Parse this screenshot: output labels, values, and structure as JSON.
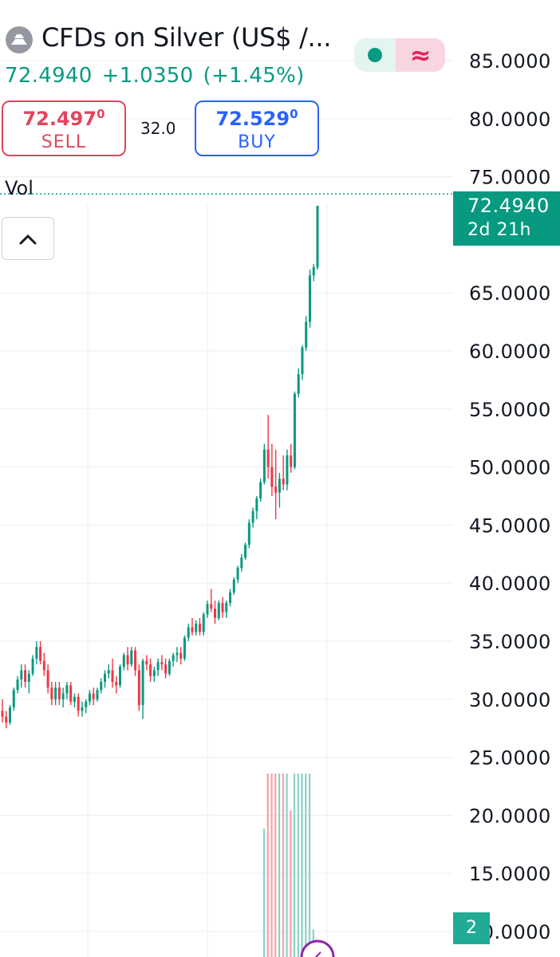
{
  "header": {
    "title": "CFDs on Silver (US$ /...",
    "icon": "silver-metal-icon",
    "status_icon": "market-open-dot-icon",
    "wave_icon": "approx-wave-icon",
    "wave_glyph": "≈"
  },
  "quote": {
    "last": "72.4940",
    "change": "+1.0350",
    "change_pct": "(+1.45%)"
  },
  "trade": {
    "sell_price": "72.497",
    "sell_price_sup": "0",
    "sell_label": "SELL",
    "spread": "32.0",
    "buy_price": "72.529",
    "buy_price_sup": "0",
    "buy_label": "BUY"
  },
  "indicator": {
    "vol_label": "Vol"
  },
  "price_label": {
    "price": "72.4940",
    "countdown": "2d 21h"
  },
  "badge": {
    "count": "2"
  },
  "colors": {
    "up": "#089981",
    "down": "#f23645",
    "vol_up": "#8fd1c6",
    "vol_down": "#f5a3ab",
    "grid": "#eef0f3"
  },
  "chart_data": {
    "type": "candlestick",
    "title": "",
    "y_axis": {
      "position": "right",
      "ticks": [
        "85.0000",
        "80.0000",
        "75.0000",
        "65.0000",
        "60.0000",
        "55.0000",
        "50.0000",
        "45.0000",
        "40.0000",
        "35.0000",
        "30.0000",
        "25.0000",
        "20.0000",
        "15.0000",
        "10.0000"
      ],
      "tick_values": [
        85,
        80,
        75,
        65,
        60,
        55,
        50,
        45,
        40,
        35,
        30,
        25,
        20,
        15,
        10
      ],
      "range": [
        10,
        85
      ]
    },
    "grid": true,
    "current_price": 72.494,
    "ohlc": [
      [
        29.0,
        30.0,
        28.0,
        28.5
      ],
      [
        28.5,
        29.0,
        27.5,
        28.0
      ],
      [
        28.0,
        29.5,
        27.8,
        29.3
      ],
      [
        29.3,
        31.0,
        29.0,
        30.8
      ],
      [
        30.8,
        32.0,
        30.5,
        31.7
      ],
      [
        31.7,
        33.0,
        31.0,
        32.5
      ],
      [
        32.5,
        33.0,
        31.0,
        31.5
      ],
      [
        31.5,
        32.5,
        30.5,
        32.2
      ],
      [
        32.2,
        33.8,
        32.0,
        33.5
      ],
      [
        33.5,
        35.0,
        33.0,
        34.5
      ],
      [
        34.5,
        35.0,
        33.0,
        33.3
      ],
      [
        33.3,
        34.0,
        32.0,
        32.5
      ],
      [
        32.5,
        33.0,
        30.5,
        31.0
      ],
      [
        31.0,
        31.5,
        29.5,
        30.0
      ],
      [
        30.0,
        31.5,
        29.5,
        31.0
      ],
      [
        31.0,
        31.5,
        29.5,
        30.0
      ],
      [
        30.0,
        31.0,
        29.3,
        30.5
      ],
      [
        30.5,
        31.5,
        30.0,
        31.2
      ],
      [
        31.2,
        31.5,
        29.5,
        29.8
      ],
      [
        29.8,
        30.5,
        29.3,
        30.2
      ],
      [
        30.2,
        30.5,
        28.5,
        29.0
      ],
      [
        29.0,
        29.8,
        28.5,
        29.3
      ],
      [
        29.3,
        30.0,
        28.8,
        29.8
      ],
      [
        29.8,
        30.8,
        29.5,
        30.5
      ],
      [
        30.5,
        31.0,
        29.5,
        30.0
      ],
      [
        30.0,
        31.0,
        29.8,
        30.8
      ],
      [
        30.8,
        31.8,
        30.5,
        31.5
      ],
      [
        31.5,
        32.5,
        31.0,
        32.2
      ],
      [
        32.2,
        33.0,
        31.8,
        32.5
      ],
      [
        32.5,
        33.5,
        31.0,
        31.5
      ],
      [
        31.5,
        32.0,
        30.5,
        31.2
      ],
      [
        31.2,
        33.0,
        31.0,
        32.8
      ],
      [
        32.8,
        34.0,
        32.5,
        33.8
      ],
      [
        33.8,
        34.5,
        32.5,
        33.0
      ],
      [
        33.0,
        34.5,
        32.8,
        34.2
      ],
      [
        34.2,
        34.5,
        32.0,
        32.5
      ],
      [
        32.5,
        33.0,
        29.0,
        29.5
      ],
      [
        29.5,
        33.5,
        28.3,
        33.3
      ],
      [
        33.3,
        33.8,
        32.5,
        33.0
      ],
      [
        33.0,
        33.5,
        31.5,
        32.0
      ],
      [
        32.0,
        32.8,
        31.5,
        32.5
      ],
      [
        32.5,
        33.5,
        32.0,
        33.2
      ],
      [
        33.2,
        33.8,
        32.5,
        33.0
      ],
      [
        33.0,
        33.5,
        31.8,
        32.2
      ],
      [
        32.2,
        33.5,
        32.0,
        33.3
      ],
      [
        33.3,
        34.0,
        32.8,
        33.8
      ],
      [
        33.8,
        34.5,
        33.2,
        34.0
      ],
      [
        34.0,
        34.5,
        33.0,
        33.5
      ],
      [
        33.5,
        35.5,
        33.3,
        35.3
      ],
      [
        35.3,
        36.5,
        35.0,
        36.2
      ],
      [
        36.2,
        37.0,
        35.5,
        35.8
      ],
      [
        35.8,
        36.8,
        35.5,
        36.5
      ],
      [
        36.5,
        37.0,
        35.5,
        35.8
      ],
      [
        35.8,
        37.5,
        35.5,
        37.3
      ],
      [
        37.3,
        38.5,
        37.0,
        38.2
      ],
      [
        38.2,
        39.5,
        37.5,
        37.8
      ],
      [
        37.8,
        38.5,
        36.5,
        37.0
      ],
      [
        37.0,
        38.5,
        36.8,
        38.3
      ],
      [
        38.3,
        38.8,
        37.0,
        37.5
      ],
      [
        37.5,
        38.5,
        37.0,
        38.3
      ],
      [
        38.3,
        39.5,
        38.0,
        39.2
      ],
      [
        39.2,
        40.5,
        39.0,
        40.3
      ],
      [
        40.3,
        41.5,
        40.0,
        41.3
      ],
      [
        41.3,
        42.5,
        41.0,
        42.2
      ],
      [
        42.2,
        43.5,
        42.0,
        43.3
      ],
      [
        43.3,
        45.5,
        43.0,
        45.2
      ],
      [
        45.2,
        46.5,
        44.8,
        46.2
      ],
      [
        46.2,
        47.5,
        45.5,
        47.3
      ],
      [
        47.3,
        49.0,
        47.0,
        48.7
      ],
      [
        48.7,
        52.0,
        48.5,
        51.5
      ],
      [
        51.5,
        54.5,
        49.0,
        50.0
      ],
      [
        50.0,
        52.0,
        47.5,
        48.3
      ],
      [
        48.3,
        51.5,
        45.5,
        47.8
      ],
      [
        47.8,
        49.5,
        46.5,
        49.0
      ],
      [
        49.0,
        51.0,
        48.0,
        48.5
      ],
      [
        48.5,
        51.5,
        48.0,
        51.0
      ],
      [
        51.0,
        52.0,
        49.5,
        50.0
      ],
      [
        50.0,
        56.5,
        49.8,
        56.3
      ],
      [
        56.3,
        58.5,
        56.0,
        58.0
      ],
      [
        58.0,
        60.5,
        57.5,
        60.3
      ],
      [
        60.3,
        63.0,
        60.0,
        62.5
      ],
      [
        62.5,
        67.0,
        62.0,
        66.5
      ],
      [
        66.5,
        67.5,
        66.0,
        67.2
      ],
      [
        67.2,
        72.5,
        67.0,
        72.494
      ]
    ],
    "volume": {
      "max": 100,
      "values": [
        0,
        0,
        0,
        0,
        0,
        0,
        0,
        0,
        0,
        0,
        0,
        0,
        0,
        0,
        0,
        0,
        0,
        0,
        0,
        0,
        0,
        0,
        0,
        0,
        0,
        0,
        0,
        0,
        0,
        0,
        0,
        0,
        0,
        0,
        0,
        0,
        0,
        0,
        0,
        0,
        0,
        0,
        0,
        0,
        0,
        0,
        0,
        0,
        0,
        0,
        0,
        0,
        0,
        0,
        0,
        0,
        0,
        0,
        0,
        0,
        0,
        0,
        0,
        0,
        0,
        0,
        0,
        0,
        0,
        70,
        100,
        100,
        100,
        100,
        100,
        100,
        80,
        100,
        100,
        100,
        100,
        100,
        15,
        0
      ]
    }
  }
}
